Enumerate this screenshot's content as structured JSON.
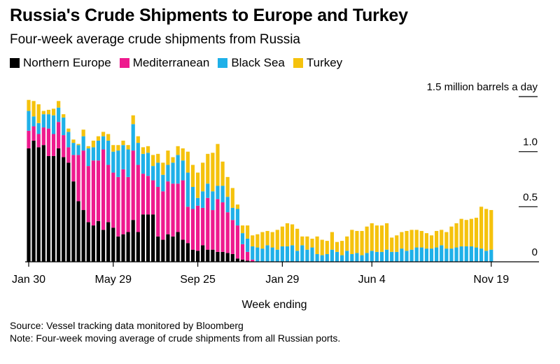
{
  "title": "Russia's Crude Shipments to Europe and Turkey",
  "subtitle": "Four-week average crude shipments from Russia",
  "source": "Source: Vessel tracking data monitored by Bloomberg",
  "note": "Note: Four-week moving average of crude shipments from all Russian ports.",
  "colors": {
    "northern_europe": "#000000",
    "mediterranean": "#ee1a8e",
    "black_sea": "#1fb0e8",
    "turkey": "#f5c20d",
    "axis": "#000000"
  },
  "legend": [
    {
      "label": "Northern Europe",
      "color": "#000000"
    },
    {
      "label": "Mediterranean",
      "color": "#ee1a8e"
    },
    {
      "label": "Black Sea",
      "color": "#1fb0e8"
    },
    {
      "label": "Turkey",
      "color": "#f5c20d"
    }
  ],
  "chart_data": {
    "type": "bar",
    "stacked": true,
    "xlabel": "Week ending",
    "ylabel": "million barrels a day",
    "ylim": [
      0,
      1.5
    ],
    "y_ticks": [
      {
        "value": 1.5,
        "label": "1.5 million barrels a day"
      },
      {
        "value": 1.0,
        "label": "1.0"
      },
      {
        "value": 0.5,
        "label": "0.5"
      },
      {
        "value": 0,
        "label": "0"
      }
    ],
    "x_ticks": [
      {
        "index": 0,
        "label": "Jan 30"
      },
      {
        "index": 17,
        "label": "May 29"
      },
      {
        "index": 34,
        "label": "Sep 25"
      },
      {
        "index": 51,
        "label": "Jan 29"
      },
      {
        "index": 69,
        "label": "Jun 4"
      },
      {
        "index": 93,
        "label": "Nov 19"
      }
    ],
    "series": [
      {
        "name": "Northern Europe",
        "values": [
          1.03,
          1.1,
          1.04,
          1.06,
          0.96,
          0.96,
          1.03,
          0.95,
          0.9,
          0.73,
          0.55,
          0.47,
          0.36,
          0.33,
          0.37,
          0.29,
          0.36,
          0.31,
          0.23,
          0.25,
          0.27,
          0.38,
          0.27,
          0.43,
          0.43,
          0.43,
          0.23,
          0.2,
          0.25,
          0.23,
          0.27,
          0.2,
          0.17,
          0.11,
          0.1,
          0.15,
          0.11,
          0.11,
          0.09,
          0.09,
          0.08,
          0.07,
          0.03,
          0.02,
          0.01,
          0,
          0,
          0,
          0,
          0,
          0,
          0,
          0,
          0,
          0,
          0,
          0,
          0,
          0,
          0,
          0,
          0,
          0,
          0,
          0,
          0,
          0,
          0,
          0,
          0,
          0,
          0,
          0,
          0,
          0,
          0,
          0,
          0,
          0,
          0,
          0,
          0,
          0,
          0,
          0,
          0,
          0,
          0,
          0,
          0,
          0,
          0,
          0,
          0
        ]
      },
      {
        "name": "Mediterranean",
        "values": [
          0.16,
          0.13,
          0.12,
          0.16,
          0.25,
          0.2,
          0.24,
          0.2,
          0.14,
          0.24,
          0.42,
          0.54,
          0.51,
          0.59,
          0.55,
          0.73,
          0.52,
          0.5,
          0.54,
          0.59,
          0.5,
          0.63,
          0.61,
          0.37,
          0.35,
          0.31,
          0.45,
          0.44,
          0.48,
          0.48,
          0.44,
          0.54,
          0.33,
          0.37,
          0.41,
          0.34,
          0.47,
          0.36,
          0.48,
          0.45,
          0.37,
          0.31,
          0.3,
          0.14,
          0.08,
          0.02,
          0,
          0,
          0,
          0,
          0,
          0,
          0,
          0,
          0,
          0,
          0,
          0,
          0,
          0,
          0,
          0,
          0,
          0,
          0,
          0,
          0,
          0,
          0,
          0,
          0,
          0,
          0,
          0,
          0,
          0,
          0,
          0,
          0,
          0,
          0,
          0,
          0,
          0,
          0,
          0,
          0,
          0,
          0,
          0,
          0,
          0,
          0,
          0
        ]
      },
      {
        "name": "Black Sea",
        "values": [
          0.18,
          0.09,
          0.1,
          0.12,
          0.13,
          0.17,
          0.13,
          0.16,
          0.14,
          0.11,
          0.09,
          0.13,
          0.16,
          0.12,
          0.18,
          0.12,
          0.22,
          0.19,
          0.24,
          0.22,
          0.25,
          0.24,
          0.2,
          0.18,
          0.21,
          0.13,
          0.22,
          0.15,
          0.15,
          0.19,
          0.26,
          0.18,
          0.31,
          0.2,
          0.07,
          0.15,
          0.13,
          0.17,
          0.12,
          0.15,
          0.14,
          0.11,
          0.15,
          0.1,
          0.12,
          0.12,
          0.13,
          0.12,
          0.15,
          0.13,
          0.11,
          0.14,
          0.14,
          0.15,
          0.1,
          0.15,
          0.11,
          0.13,
          0.07,
          0.06,
          0.07,
          0.11,
          0.09,
          0.06,
          0.1,
          0.07,
          0.08,
          0.06,
          0.08,
          0.1,
          0.09,
          0.09,
          0.11,
          0.09,
          0.09,
          0.12,
          0.1,
          0.11,
          0.13,
          0.13,
          0.12,
          0.12,
          0.13,
          0.15,
          0.12,
          0.12,
          0.13,
          0.14,
          0.14,
          0.14,
          0.13,
          0.12,
          0.1,
          0.11
        ]
      },
      {
        "name": "Turkey",
        "values": [
          0.1,
          0.14,
          0.17,
          0.03,
          0.04,
          0.06,
          0.06,
          0.03,
          0.03,
          0.03,
          0.01,
          0.06,
          0.02,
          0.06,
          0.04,
          0.04,
          0.06,
          0.06,
          0.05,
          0.04,
          0.04,
          0.08,
          0.06,
          0.06,
          0.06,
          0.1,
          0.08,
          0.11,
          0.13,
          0.05,
          0.08,
          0.11,
          0.19,
          0.2,
          0.23,
          0.26,
          0.27,
          0.35,
          0.38,
          0.22,
          0.18,
          0.18,
          0.04,
          0.07,
          0.12,
          0.1,
          0.12,
          0.15,
          0.13,
          0.14,
          0.18,
          0.18,
          0.21,
          0.19,
          0.2,
          0.08,
          0.12,
          0.08,
          0.16,
          0.14,
          0.12,
          0.16,
          0.09,
          0.13,
          0.13,
          0.22,
          0.2,
          0.22,
          0.24,
          0.25,
          0.24,
          0.24,
          0.24,
          0.13,
          0.15,
          0.15,
          0.18,
          0.18,
          0.16,
          0.15,
          0.14,
          0.12,
          0.15,
          0.14,
          0.15,
          0.2,
          0.22,
          0.25,
          0.24,
          0.25,
          0.27,
          0.38,
          0.38,
          0.36
        ]
      }
    ]
  }
}
